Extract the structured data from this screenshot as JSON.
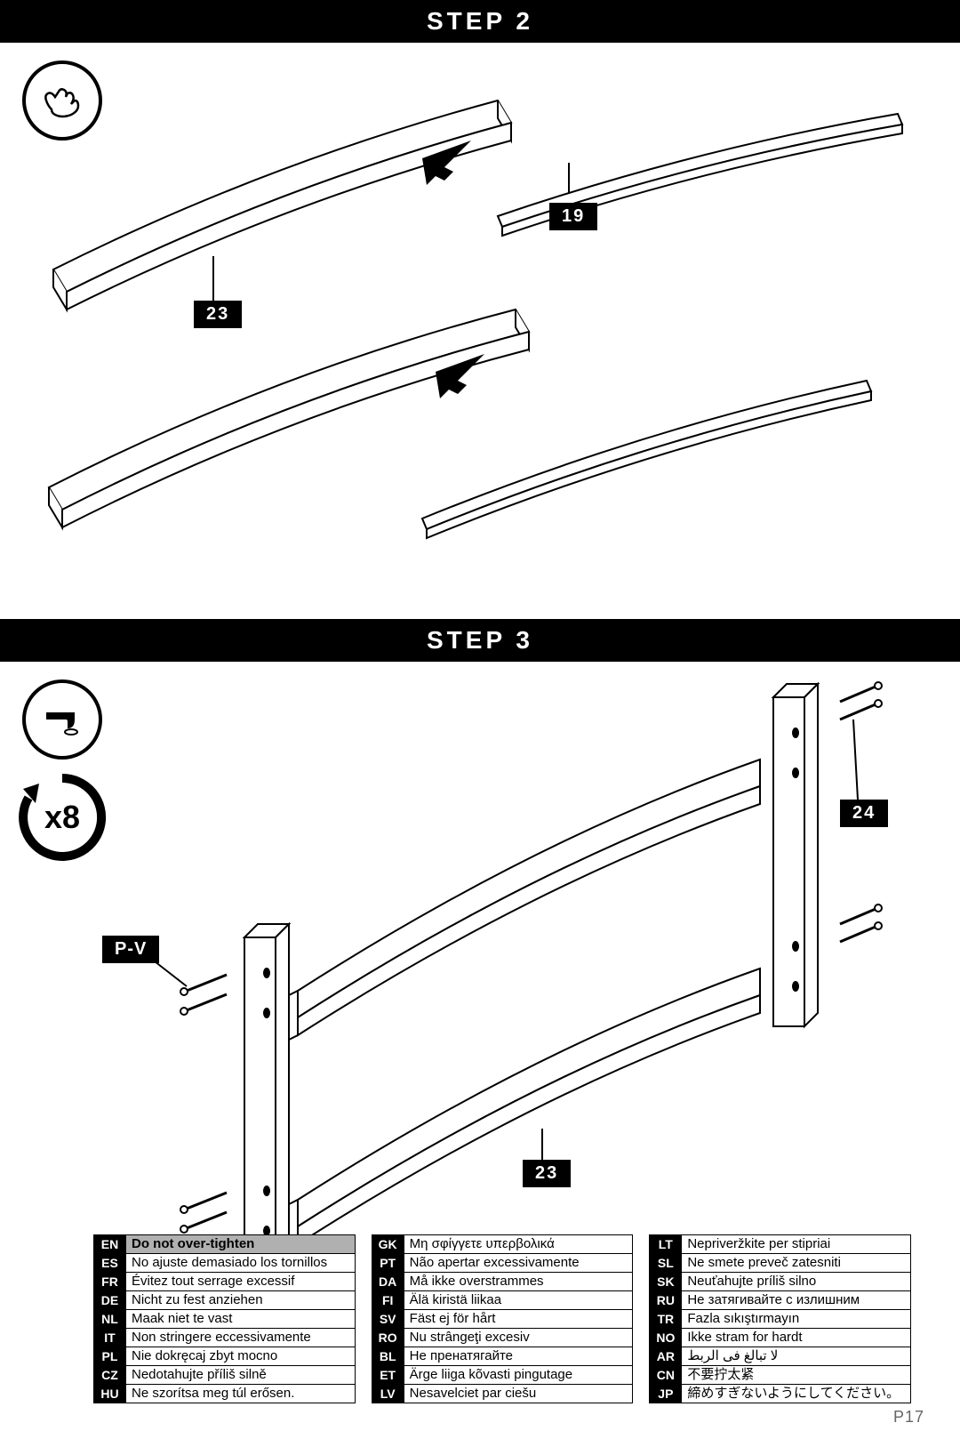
{
  "page_number": "P17",
  "step2": {
    "title": "STEP 2",
    "labels": {
      "part23": "23",
      "part19": "19"
    }
  },
  "step3": {
    "title": "STEP 3",
    "qty_label": "x8",
    "labels": {
      "part24": "24",
      "part23": "23",
      "pv": "P-V"
    }
  },
  "lang_table": {
    "cols": [
      [
        {
          "code": "EN",
          "text": "Do not over-tighten",
          "hl": true
        },
        {
          "code": "ES",
          "text": "No ajuste demasiado los tornillos"
        },
        {
          "code": "FR",
          "text": "Évitez tout serrage excessif"
        },
        {
          "code": "DE",
          "text": "Nicht zu fest anziehen"
        },
        {
          "code": "NL",
          "text": "Maak niet te vast"
        },
        {
          "code": "IT",
          "text": "Non stringere eccessivamente"
        },
        {
          "code": "PL",
          "text": "Nie dokręcaj zbyt mocno"
        },
        {
          "code": "CZ",
          "text": "Nedotahujte příliš silně"
        },
        {
          "code": "HU",
          "text": "Ne szorítsa meg túl erősen."
        }
      ],
      [
        {
          "code": "GK",
          "text": "Μη σφίγγετε υπερβολικά"
        },
        {
          "code": "PT",
          "text": "Não apertar excessivamente"
        },
        {
          "code": "DA",
          "text": "Må ikke overstrammes"
        },
        {
          "code": "FI",
          "text": "Älä kiristä liikaa"
        },
        {
          "code": "SV",
          "text": "Fäst ej för hårt"
        },
        {
          "code": "RO",
          "text": "Nu strângeţi excesiv"
        },
        {
          "code": "BL",
          "text": "Не пренатягайте"
        },
        {
          "code": "ET",
          "text": "Ärge liiga kõvasti pingutage"
        },
        {
          "code": "LV",
          "text": "Nesavelciet par ciešu"
        }
      ],
      [
        {
          "code": "LT",
          "text": "Nepriveržkite per stipriai"
        },
        {
          "code": "SL",
          "text": "Ne smete preveč zatesniti"
        },
        {
          "code": "SK",
          "text": "Neuťahujte príliš silno"
        },
        {
          "code": "RU",
          "text": "Не затягивайте с излишним"
        },
        {
          "code": "TR",
          "text": "Fazla sıkıştırmayın"
        },
        {
          "code": "NO",
          "text": "Ikke stram for hardt"
        },
        {
          "code": "AR",
          "text": "لا تبالغ فى الربط"
        },
        {
          "code": "CN",
          "text": "不要拧太紧"
        },
        {
          "code": "JP",
          "text": "締めすぎないようにしてください。"
        }
      ]
    ]
  },
  "colors": {
    "black": "#000000",
    "white": "#ffffff",
    "grey_hl": "#b0b0b0",
    "page_num": "#666666"
  }
}
